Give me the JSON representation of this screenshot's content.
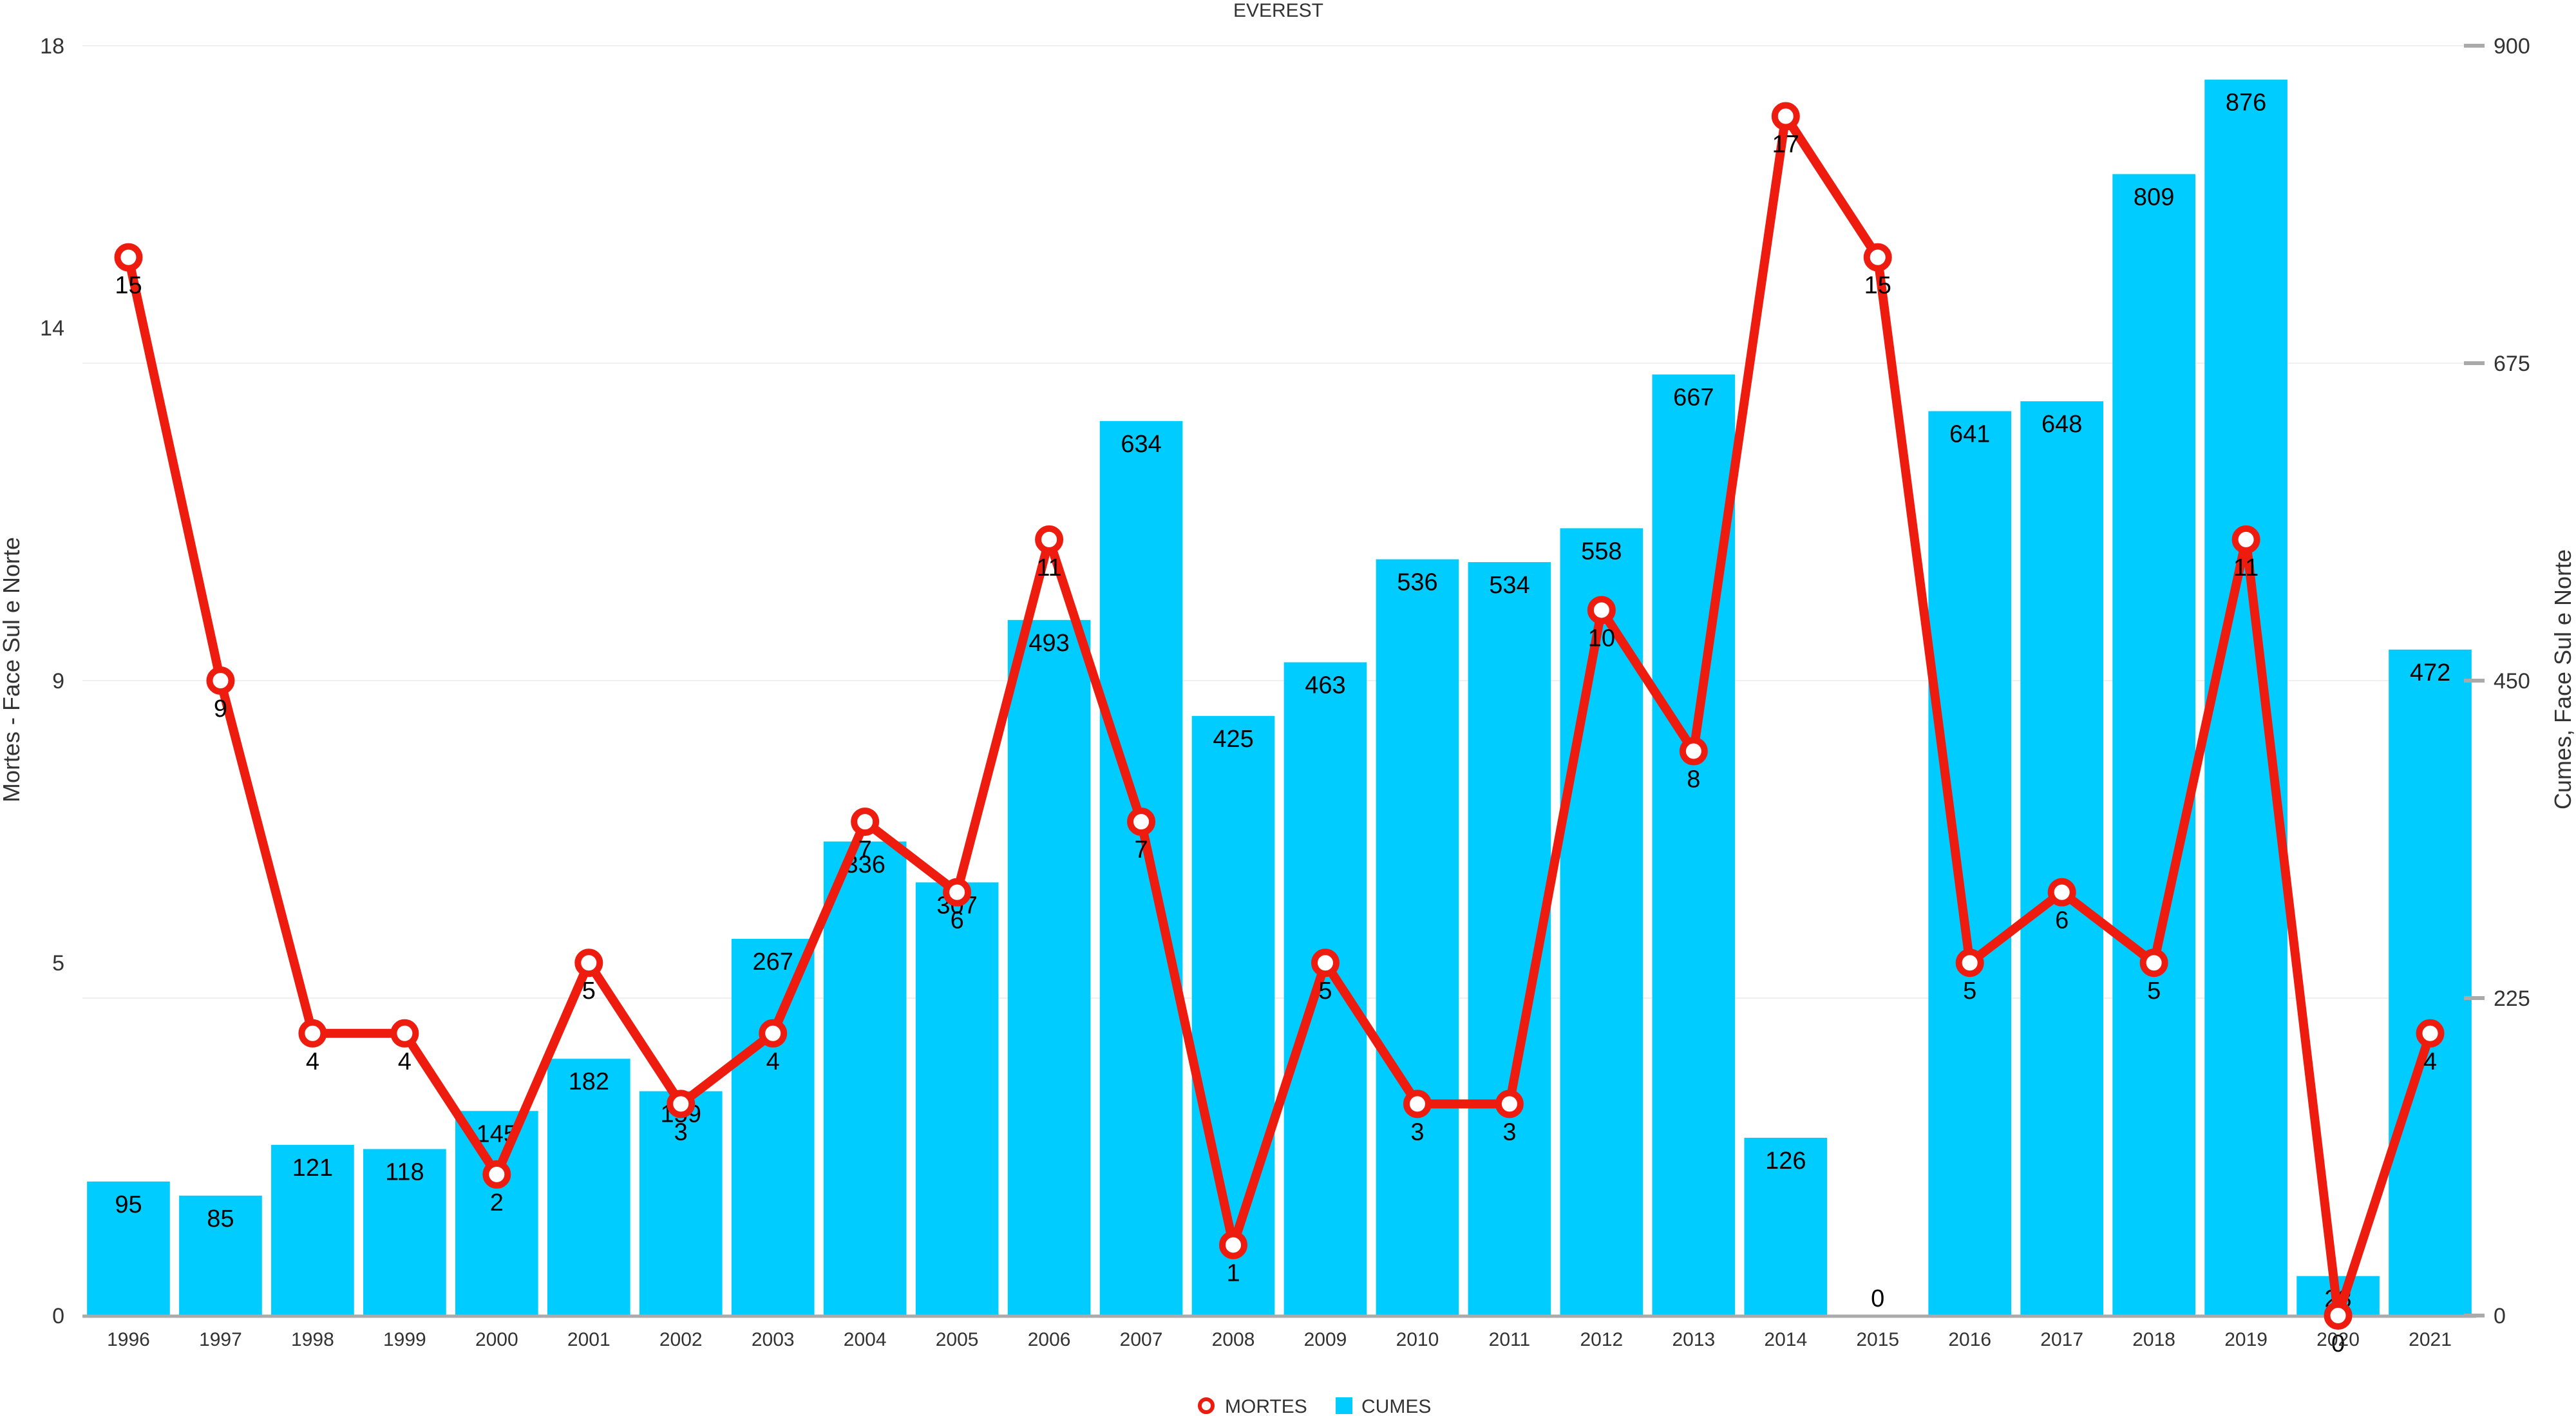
{
  "chart_data": {
    "type": "bar",
    "title": "EVEREST",
    "categories": [
      "1996",
      "1997",
      "1998",
      "1999",
      "2000",
      "2001",
      "2002",
      "2003",
      "2004",
      "2005",
      "2006",
      "2007",
      "2008",
      "2009",
      "2010",
      "2011",
      "2012",
      "2013",
      "2014",
      "2015",
      "2016",
      "2017",
      "2018",
      "2019",
      "2020",
      "2021"
    ],
    "series": [
      {
        "name": "CUMES",
        "type": "bar",
        "axis": "right",
        "color": "#00ccff",
        "values": [
          95,
          85,
          121,
          118,
          145,
          182,
          159,
          267,
          336,
          307,
          493,
          634,
          425,
          463,
          536,
          534,
          558,
          667,
          126,
          0,
          641,
          648,
          809,
          876,
          28,
          472
        ]
      },
      {
        "name": "MORTES",
        "type": "line",
        "axis": "left",
        "color": "#ee1c0e",
        "values": [
          15,
          9,
          4,
          4,
          2,
          5,
          3,
          4,
          7,
          6,
          11,
          7,
          1,
          5,
          3,
          3,
          10,
          8,
          17,
          15,
          5,
          6,
          5,
          11,
          0,
          4
        ]
      }
    ],
    "yaxis_left": {
      "title": "Mortes - Face Sul e Norte",
      "ylim": [
        0,
        18
      ],
      "ticks": [
        0,
        5,
        9,
        14,
        18
      ],
      "tick_labels": [
        "0",
        "5",
        "9",
        "14",
        "18"
      ]
    },
    "yaxis_right": {
      "title": "Cumes, Face Sul e Norte",
      "ylim": [
        0,
        900
      ],
      "ticks": [
        0,
        225,
        450,
        675,
        900
      ],
      "tick_labels": [
        "0",
        "225",
        "450",
        "675",
        "900"
      ]
    },
    "grid": true,
    "legend": {
      "placement": "bottom-center",
      "entries": [
        "MORTES",
        "CUMES"
      ]
    }
  }
}
